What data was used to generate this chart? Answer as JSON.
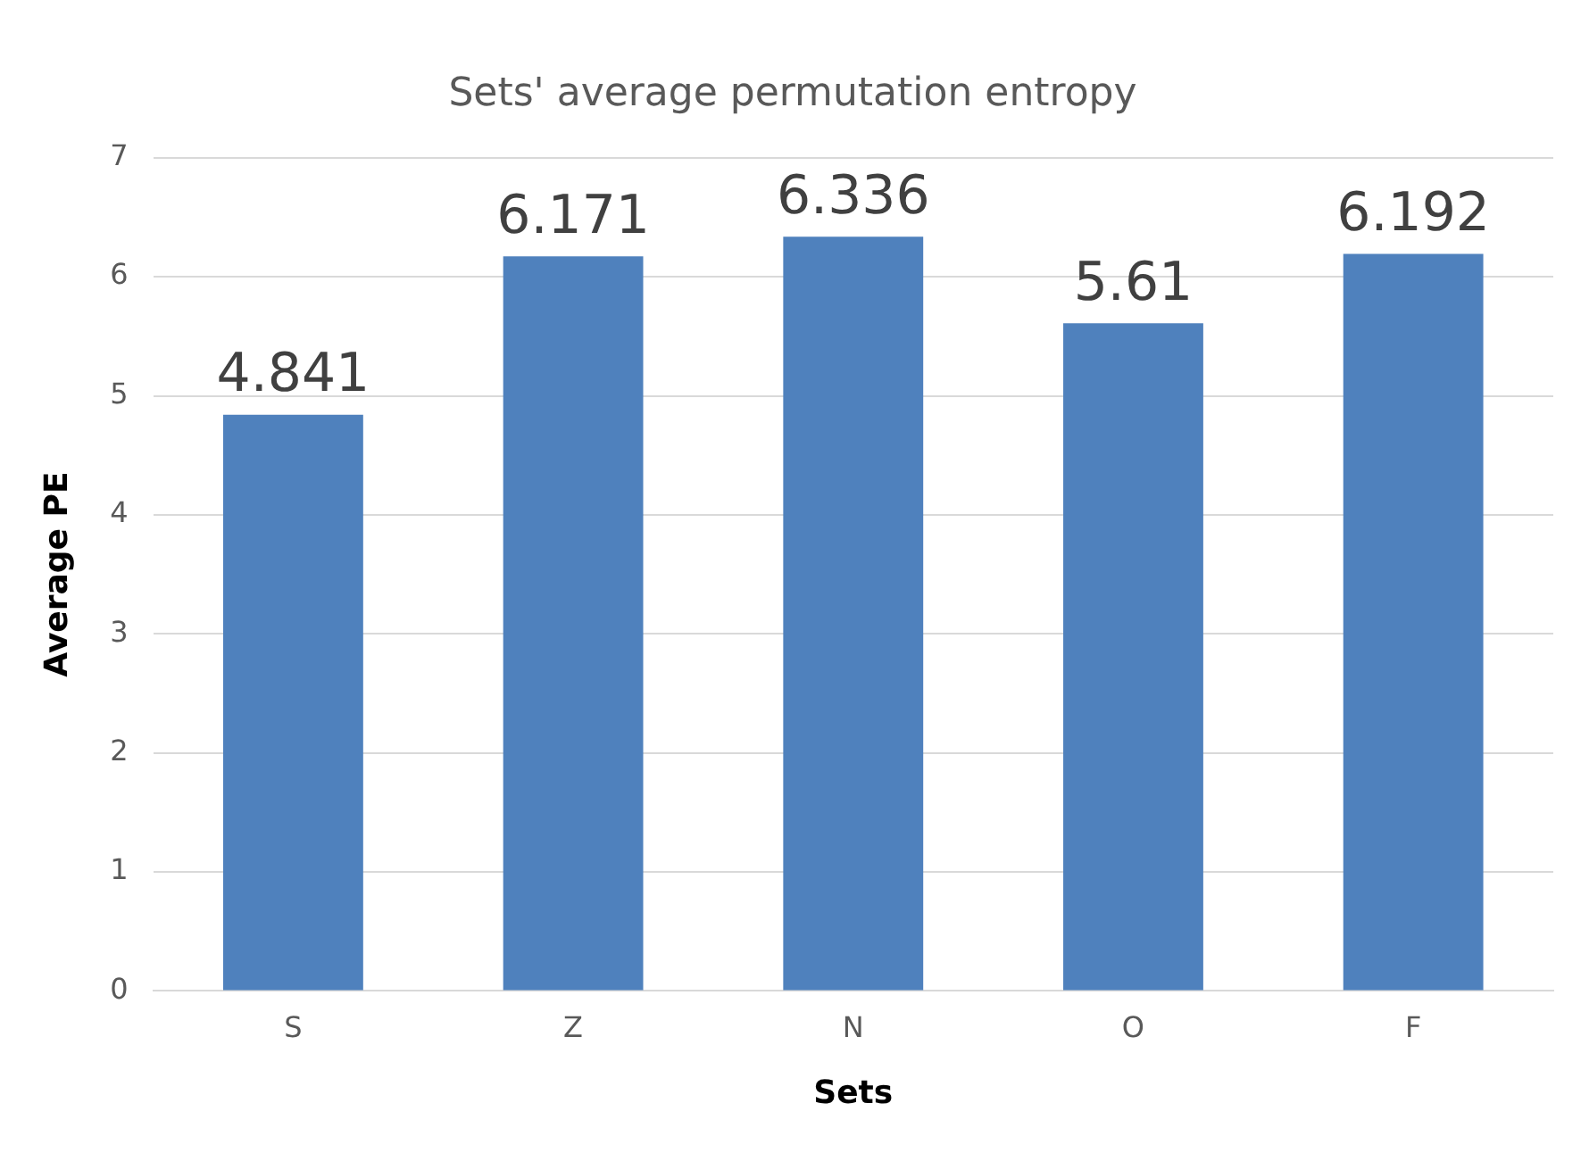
{
  "chart_data": {
    "type": "bar",
    "title": "Sets' average permutation entropy",
    "xlabel": "Sets",
    "ylabel": "Average PE",
    "categories": [
      "S",
      "Z",
      "N",
      "O",
      "F"
    ],
    "values": [
      4.841,
      6.171,
      6.336,
      5.61,
      6.192
    ],
    "color": "#4f81bd",
    "ylim": [
      0,
      7
    ],
    "yticks": [
      0,
      1,
      2,
      3,
      4,
      5,
      6,
      7
    ],
    "grid": "y",
    "legend": false,
    "data_labels": true
  }
}
